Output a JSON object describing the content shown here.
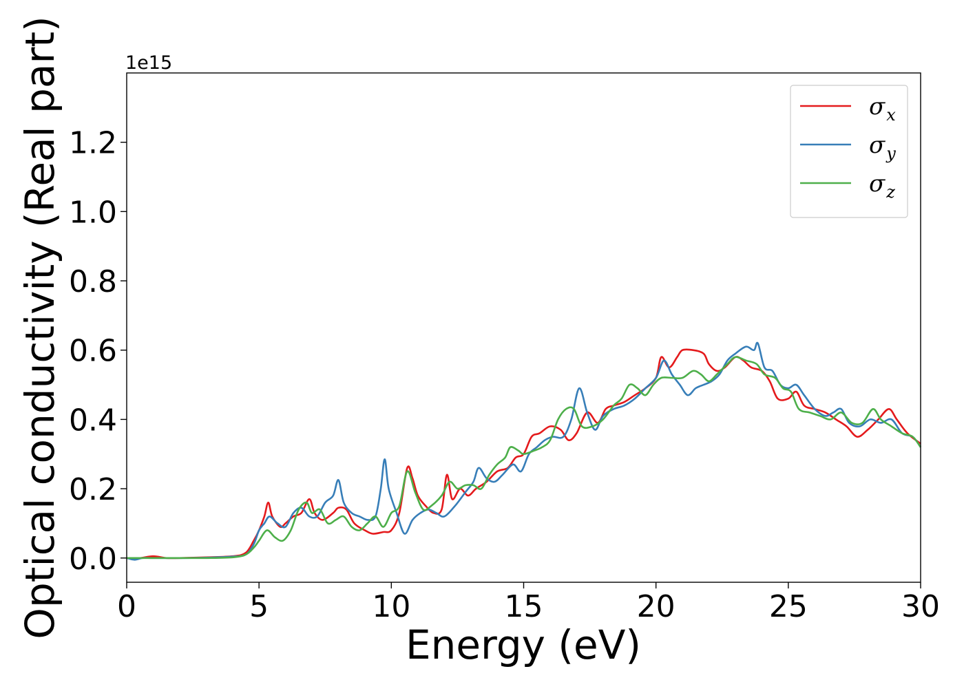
{
  "chart_data": {
    "type": "line",
    "xlabel": "Energy (eV)",
    "ylabel": "Optical conductivity (Real part)",
    "y_offset_text": "1e15",
    "xlim": [
      0,
      30
    ],
    "ylim": [
      -0.07,
      1.4
    ],
    "xticks": [
      0,
      5,
      10,
      15,
      20,
      25,
      30
    ],
    "xtick_labels": [
      "0",
      "5",
      "10",
      "15",
      "20",
      "25",
      "30"
    ],
    "yticks": [
      0.0,
      0.2,
      0.4,
      0.6,
      0.8,
      1.0,
      1.2
    ],
    "ytick_labels": [
      "0.0",
      "0.2",
      "0.4",
      "0.6",
      "0.8",
      "1.0",
      "1.2"
    ],
    "grid": false,
    "legend_position": "top-right",
    "series": [
      {
        "name": "σx",
        "legend_symbol": "σ",
        "legend_sub": "x",
        "color": "#e41a1c",
        "points": [
          [
            0,
            0
          ],
          [
            0.5,
            0.0
          ],
          [
            1,
            0.005
          ],
          [
            1.5,
            0.0
          ],
          [
            2,
            0.0
          ],
          [
            3,
            0.002
          ],
          [
            4,
            0.005
          ],
          [
            4.5,
            0.015
          ],
          [
            4.8,
            0.05
          ],
          [
            5.0,
            0.08
          ],
          [
            5.2,
            0.12
          ],
          [
            5.35,
            0.16
          ],
          [
            5.5,
            0.12
          ],
          [
            5.8,
            0.09
          ],
          [
            6.0,
            0.1
          ],
          [
            6.3,
            0.12
          ],
          [
            6.6,
            0.13
          ],
          [
            6.9,
            0.17
          ],
          [
            7.1,
            0.13
          ],
          [
            7.4,
            0.11
          ],
          [
            7.8,
            0.13
          ],
          [
            8.0,
            0.145
          ],
          [
            8.3,
            0.14
          ],
          [
            8.6,
            0.1
          ],
          [
            9.0,
            0.08
          ],
          [
            9.3,
            0.07
          ],
          [
            9.7,
            0.075
          ],
          [
            10.0,
            0.08
          ],
          [
            10.3,
            0.13
          ],
          [
            10.6,
            0.26
          ],
          [
            10.8,
            0.23
          ],
          [
            11.0,
            0.18
          ],
          [
            11.3,
            0.15
          ],
          [
            11.6,
            0.13
          ],
          [
            11.9,
            0.14
          ],
          [
            12.1,
            0.24
          ],
          [
            12.3,
            0.17
          ],
          [
            12.6,
            0.2
          ],
          [
            12.9,
            0.18
          ],
          [
            13.2,
            0.2
          ],
          [
            13.6,
            0.22
          ],
          [
            14.0,
            0.25
          ],
          [
            14.4,
            0.26
          ],
          [
            14.7,
            0.29
          ],
          [
            15.0,
            0.3
          ],
          [
            15.3,
            0.35
          ],
          [
            15.6,
            0.36
          ],
          [
            16.0,
            0.38
          ],
          [
            16.4,
            0.37
          ],
          [
            16.7,
            0.34
          ],
          [
            17.0,
            0.36
          ],
          [
            17.4,
            0.42
          ],
          [
            17.8,
            0.39
          ],
          [
            18.1,
            0.43
          ],
          [
            18.4,
            0.44
          ],
          [
            18.8,
            0.45
          ],
          [
            19.2,
            0.47
          ],
          [
            19.6,
            0.49
          ],
          [
            20.0,
            0.52
          ],
          [
            20.2,
            0.58
          ],
          [
            20.5,
            0.55
          ],
          [
            20.8,
            0.58
          ],
          [
            21.0,
            0.6
          ],
          [
            21.4,
            0.6
          ],
          [
            21.8,
            0.59
          ],
          [
            22.0,
            0.56
          ],
          [
            22.3,
            0.54
          ],
          [
            22.6,
            0.55
          ],
          [
            23.0,
            0.58
          ],
          [
            23.3,
            0.57
          ],
          [
            23.6,
            0.55
          ],
          [
            24.0,
            0.54
          ],
          [
            24.3,
            0.51
          ],
          [
            24.6,
            0.46
          ],
          [
            25.0,
            0.46
          ],
          [
            25.3,
            0.48
          ],
          [
            25.6,
            0.44
          ],
          [
            26.0,
            0.43
          ],
          [
            26.4,
            0.42
          ],
          [
            26.8,
            0.4
          ],
          [
            27.2,
            0.38
          ],
          [
            27.6,
            0.35
          ],
          [
            28.0,
            0.37
          ],
          [
            28.4,
            0.4
          ],
          [
            28.8,
            0.43
          ],
          [
            29.1,
            0.4
          ],
          [
            29.5,
            0.36
          ],
          [
            30.0,
            0.33
          ]
        ]
      },
      {
        "name": "σy",
        "legend_symbol": "σ",
        "legend_sub": "y",
        "color": "#377eb8",
        "points": [
          [
            0,
            0
          ],
          [
            0.3,
            -0.005
          ],
          [
            0.6,
            0.0
          ],
          [
            1,
            0.0
          ],
          [
            2,
            0.0
          ],
          [
            3,
            0.001
          ],
          [
            4,
            0.004
          ],
          [
            4.5,
            0.01
          ],
          [
            4.8,
            0.04
          ],
          [
            5.0,
            0.08
          ],
          [
            5.2,
            0.1
          ],
          [
            5.4,
            0.12
          ],
          [
            5.7,
            0.1
          ],
          [
            6.0,
            0.09
          ],
          [
            6.3,
            0.13
          ],
          [
            6.6,
            0.145
          ],
          [
            6.9,
            0.12
          ],
          [
            7.2,
            0.12
          ],
          [
            7.5,
            0.16
          ],
          [
            7.8,
            0.18
          ],
          [
            8.0,
            0.225
          ],
          [
            8.2,
            0.16
          ],
          [
            8.5,
            0.13
          ],
          [
            8.8,
            0.12
          ],
          [
            9.1,
            0.11
          ],
          [
            9.4,
            0.12
          ],
          [
            9.6,
            0.2
          ],
          [
            9.75,
            0.285
          ],
          [
            9.9,
            0.2
          ],
          [
            10.2,
            0.13
          ],
          [
            10.5,
            0.07
          ],
          [
            10.8,
            0.11
          ],
          [
            11.1,
            0.13
          ],
          [
            11.4,
            0.14
          ],
          [
            11.7,
            0.13
          ],
          [
            12.0,
            0.12
          ],
          [
            12.4,
            0.15
          ],
          [
            12.8,
            0.19
          ],
          [
            13.1,
            0.22
          ],
          [
            13.3,
            0.26
          ],
          [
            13.6,
            0.23
          ],
          [
            13.9,
            0.22
          ],
          [
            14.2,
            0.24
          ],
          [
            14.6,
            0.27
          ],
          [
            14.9,
            0.25
          ],
          [
            15.2,
            0.3
          ],
          [
            15.5,
            0.32
          ],
          [
            15.8,
            0.34
          ],
          [
            16.1,
            0.35
          ],
          [
            16.5,
            0.35
          ],
          [
            16.8,
            0.4
          ],
          [
            17.1,
            0.49
          ],
          [
            17.4,
            0.42
          ],
          [
            17.7,
            0.37
          ],
          [
            18.0,
            0.41
          ],
          [
            18.4,
            0.43
          ],
          [
            18.8,
            0.44
          ],
          [
            19.2,
            0.46
          ],
          [
            19.6,
            0.49
          ],
          [
            20.0,
            0.52
          ],
          [
            20.3,
            0.57
          ],
          [
            20.6,
            0.53
          ],
          [
            20.9,
            0.5
          ],
          [
            21.2,
            0.47
          ],
          [
            21.5,
            0.49
          ],
          [
            21.8,
            0.5
          ],
          [
            22.1,
            0.51
          ],
          [
            22.4,
            0.53
          ],
          [
            22.7,
            0.57
          ],
          [
            23.0,
            0.59
          ],
          [
            23.4,
            0.61
          ],
          [
            23.7,
            0.6
          ],
          [
            23.85,
            0.62
          ],
          [
            24.1,
            0.55
          ],
          [
            24.4,
            0.54
          ],
          [
            24.7,
            0.5
          ],
          [
            25.0,
            0.49
          ],
          [
            25.3,
            0.5
          ],
          [
            25.6,
            0.47
          ],
          [
            26.0,
            0.43
          ],
          [
            26.4,
            0.41
          ],
          [
            26.7,
            0.42
          ],
          [
            27.0,
            0.43
          ],
          [
            27.3,
            0.39
          ],
          [
            27.7,
            0.38
          ],
          [
            28.1,
            0.4
          ],
          [
            28.5,
            0.39
          ],
          [
            28.9,
            0.4
          ],
          [
            29.3,
            0.36
          ],
          [
            29.7,
            0.35
          ],
          [
            30.0,
            0.32
          ]
        ]
      },
      {
        "name": "σz",
        "legend_symbol": "σ",
        "legend_sub": "z",
        "color": "#4daf4a",
        "points": [
          [
            0,
            0
          ],
          [
            0.5,
            0.0
          ],
          [
            1,
            0.0
          ],
          [
            2,
            0.0
          ],
          [
            3,
            0.0
          ],
          [
            4,
            0.002
          ],
          [
            4.5,
            0.01
          ],
          [
            4.8,
            0.03
          ],
          [
            5.0,
            0.05
          ],
          [
            5.3,
            0.08
          ],
          [
            5.6,
            0.06
          ],
          [
            5.9,
            0.05
          ],
          [
            6.2,
            0.08
          ],
          [
            6.5,
            0.14
          ],
          [
            6.8,
            0.16
          ],
          [
            7.0,
            0.13
          ],
          [
            7.3,
            0.14
          ],
          [
            7.6,
            0.1
          ],
          [
            7.9,
            0.11
          ],
          [
            8.2,
            0.12
          ],
          [
            8.5,
            0.09
          ],
          [
            8.8,
            0.08
          ],
          [
            9.1,
            0.1
          ],
          [
            9.4,
            0.12
          ],
          [
            9.7,
            0.09
          ],
          [
            10.0,
            0.13
          ],
          [
            10.3,
            0.15
          ],
          [
            10.6,
            0.25
          ],
          [
            10.9,
            0.19
          ],
          [
            11.2,
            0.14
          ],
          [
            11.5,
            0.15
          ],
          [
            11.9,
            0.18
          ],
          [
            12.2,
            0.22
          ],
          [
            12.5,
            0.2
          ],
          [
            12.8,
            0.21
          ],
          [
            13.1,
            0.21
          ],
          [
            13.4,
            0.2
          ],
          [
            13.7,
            0.24
          ],
          [
            14.0,
            0.27
          ],
          [
            14.3,
            0.29
          ],
          [
            14.5,
            0.32
          ],
          [
            14.8,
            0.31
          ],
          [
            15.0,
            0.3
          ],
          [
            15.4,
            0.31
          ],
          [
            15.7,
            0.32
          ],
          [
            16.0,
            0.34
          ],
          [
            16.3,
            0.4
          ],
          [
            16.6,
            0.43
          ],
          [
            16.9,
            0.43
          ],
          [
            17.2,
            0.38
          ],
          [
            17.6,
            0.38
          ],
          [
            18.0,
            0.4
          ],
          [
            18.4,
            0.44
          ],
          [
            18.7,
            0.46
          ],
          [
            19.0,
            0.5
          ],
          [
            19.3,
            0.49
          ],
          [
            19.6,
            0.47
          ],
          [
            19.9,
            0.5
          ],
          [
            20.2,
            0.52
          ],
          [
            20.6,
            0.52
          ],
          [
            21.0,
            0.52
          ],
          [
            21.4,
            0.54
          ],
          [
            21.7,
            0.53
          ],
          [
            22.0,
            0.51
          ],
          [
            22.3,
            0.53
          ],
          [
            22.7,
            0.56
          ],
          [
            23.0,
            0.58
          ],
          [
            23.4,
            0.57
          ],
          [
            23.8,
            0.56
          ],
          [
            24.1,
            0.53
          ],
          [
            24.5,
            0.52
          ],
          [
            24.8,
            0.49
          ],
          [
            25.1,
            0.48
          ],
          [
            25.4,
            0.43
          ],
          [
            25.8,
            0.42
          ],
          [
            26.2,
            0.41
          ],
          [
            26.6,
            0.4
          ],
          [
            27.0,
            0.42
          ],
          [
            27.4,
            0.39
          ],
          [
            27.8,
            0.39
          ],
          [
            28.2,
            0.43
          ],
          [
            28.5,
            0.4
          ],
          [
            28.9,
            0.38
          ],
          [
            29.3,
            0.36
          ],
          [
            29.7,
            0.35
          ],
          [
            30.0,
            0.32
          ]
        ]
      }
    ]
  }
}
